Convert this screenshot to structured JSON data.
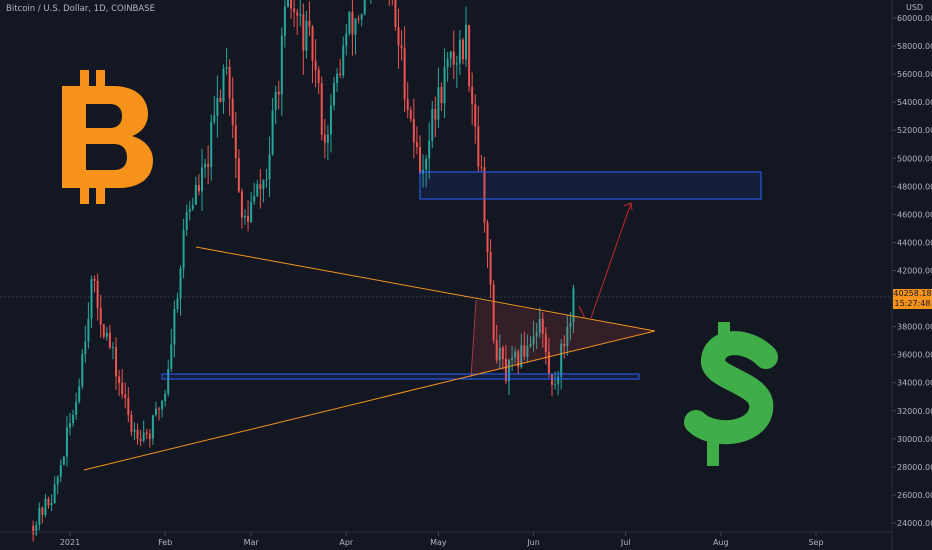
{
  "header": {
    "title": "Bitcoin / U.S. Dollar, 1D, COINBASE"
  },
  "price_axis": {
    "currency": "USD"
  },
  "last_price": {
    "value": "40258.18",
    "countdown": "15:27:48"
  },
  "colors": {
    "background": "#131722",
    "up": "#26a69a",
    "down": "#ef5350",
    "trendline": "#f7931a",
    "zone": "#2962ff",
    "bitcoin": "#f7931a",
    "dollar": "#3fae49",
    "target_arrow": "#c62828"
  },
  "icons": {
    "bitcoin": "bitcoin-logo",
    "dollar": "dollar-sign"
  },
  "chart_data": {
    "type": "candlestick",
    "title": "Bitcoin / U.S. Dollar, 1D, COINBASE",
    "xlabel": "",
    "ylabel": "USD",
    "x_ticks": [
      "2021",
      "Feb",
      "Mar",
      "Apr",
      "May",
      "Jun",
      "Jul",
      "Aug",
      "Sep"
    ],
    "y_ticks": [
      "24000.00",
      "26000.00",
      "28000.00",
      "30000.00",
      "32000.00",
      "34000.00",
      "36000.00",
      "38000.00",
      "40000.00",
      "42000.00",
      "44000.00",
      "46000.00",
      "48000.00",
      "50000.00",
      "52000.00",
      "54000.00",
      "56000.00",
      "58000.00",
      "60000.00"
    ],
    "ylim": [
      23800,
      61000
    ],
    "grid": false,
    "price_closes": [
      [
        "2020-12-20",
        23800
      ],
      [
        "2020-12-27",
        26300
      ],
      [
        "2021-01-03",
        32900
      ],
      [
        "2021-01-08",
        41000
      ],
      [
        "2021-01-13",
        37300
      ],
      [
        "2021-01-21",
        30800
      ],
      [
        "2021-01-27",
        30400
      ],
      [
        "2021-02-01",
        33500
      ],
      [
        "2021-02-08",
        46200
      ],
      [
        "2021-02-14",
        48900
      ],
      [
        "2021-02-21",
        57500
      ],
      [
        "2021-02-26",
        45200
      ],
      [
        "2021-03-06",
        48800
      ],
      [
        "2021-03-13",
        61200
      ],
      [
        "2021-03-21",
        57500
      ],
      [
        "2021-03-25",
        51300
      ],
      [
        "2021-04-01",
        58800
      ],
      [
        "2021-04-14",
        63500
      ],
      [
        "2021-04-25",
        49000
      ],
      [
        "2021-05-03",
        56000
      ],
      [
        "2021-05-10",
        58500
      ],
      [
        "2021-05-16",
        46500
      ],
      [
        "2021-05-19",
        37000
      ],
      [
        "2021-05-23",
        34500
      ],
      [
        "2021-05-28",
        36000
      ],
      [
        "2021-06-03",
        38500
      ],
      [
        "2021-06-07",
        33500
      ],
      [
        "2021-06-10",
        36000
      ],
      [
        "2021-06-14",
        40258
      ]
    ],
    "annotations": [
      {
        "type": "trendline",
        "from": [
          "2021-02-08",
          43800
        ],
        "to": [
          "2021-07-02",
          37700
        ]
      },
      {
        "type": "trendline",
        "from": [
          "2021-01-01",
          27700
        ],
        "to": [
          "2021-07-02",
          37700
        ]
      },
      {
        "type": "zone",
        "x": [
          "2021-04-21",
          "2021-08-15"
        ],
        "y": [
          47200,
          49200
        ]
      },
      {
        "type": "zone",
        "x": [
          "2021-02-01",
          "2021-06-25"
        ],
        "y": [
          34400,
          34800
        ]
      },
      {
        "type": "projection_arrow",
        "from": [
          "2021-06-19",
          38700
        ],
        "to": [
          "2021-06-30",
          47100
        ]
      }
    ]
  }
}
